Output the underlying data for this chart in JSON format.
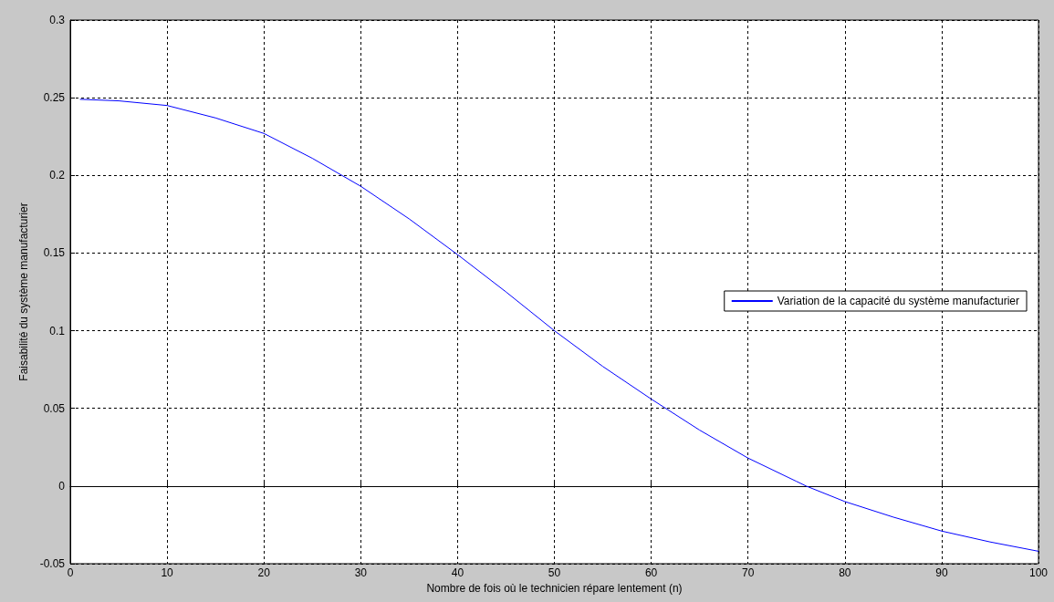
{
  "chart_data": {
    "type": "line",
    "xlabel": "Nombre de fois où le technicien répare lentement (n)",
    "ylabel": "Faisabilité du système manufacturier",
    "x": [
      1,
      5,
      10,
      15,
      20,
      25,
      30,
      35,
      40,
      45,
      50,
      55,
      60,
      65,
      70,
      75,
      76,
      80,
      85,
      90,
      95,
      100
    ],
    "series": [
      {
        "name": "Variation de la capacité du système manufacturier",
        "color": "#0000ff",
        "values": [
          0.249,
          0.248,
          0.245,
          0.237,
          0.227,
          0.211,
          0.193,
          0.172,
          0.149,
          0.125,
          0.1,
          0.077,
          0.056,
          0.036,
          0.018,
          0.003,
          0,
          -0.01,
          -0.02,
          -0.029,
          -0.036,
          -0.042
        ]
      }
    ],
    "xlim": [
      0,
      100
    ],
    "xticks": [
      0,
      10,
      20,
      30,
      40,
      50,
      60,
      70,
      80,
      90,
      100
    ],
    "ylim": [
      -0.05,
      0.3
    ],
    "yticks": [
      -0.05,
      0,
      0.05,
      0.1,
      0.15,
      0.2,
      0.25,
      0.3
    ],
    "grid": true,
    "legend": "right",
    "marker": "none",
    "line_style": "solid"
  }
}
